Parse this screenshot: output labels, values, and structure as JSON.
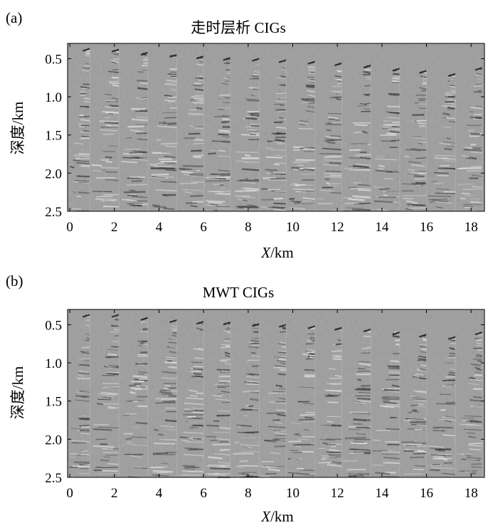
{
  "chart_data": [
    {
      "type": "heatmap",
      "panel_label": "(a)",
      "title": "走时层析 CIGs",
      "xlabel_var": "X",
      "xlabel_unit": "/km",
      "ylabel": "深度/km",
      "xlim": [
        -0.1,
        18.6
      ],
      "ylim": [
        0.3,
        2.5
      ],
      "y_inverted": true,
      "xticks": [
        0,
        2,
        4,
        6,
        8,
        10,
        12,
        14,
        16,
        18
      ],
      "yticks": [
        0.5,
        1.0,
        1.5,
        2.0,
        2.5
      ],
      "ytick_labels": [
        "0.5",
        "1.0",
        "1.5",
        "2.0",
        "2.5"
      ],
      "colormap": "gray",
      "background": "#9a9a9a",
      "gather_tops": [
        {
          "x": 0.9,
          "depth": 0.37
        },
        {
          "x": 2.2,
          "depth": 0.38
        },
        {
          "x": 3.5,
          "depth": 0.42
        },
        {
          "x": 4.8,
          "depth": 0.45
        },
        {
          "x": 6.0,
          "depth": 0.47
        },
        {
          "x": 7.2,
          "depth": 0.49
        },
        {
          "x": 8.5,
          "depth": 0.5
        },
        {
          "x": 9.7,
          "depth": 0.52
        },
        {
          "x": 11.0,
          "depth": 0.54
        },
        {
          "x": 12.2,
          "depth": 0.56
        },
        {
          "x": 13.5,
          "depth": 0.59
        },
        {
          "x": 14.8,
          "depth": 0.63
        },
        {
          "x": 16.0,
          "depth": 0.66
        },
        {
          "x": 17.3,
          "depth": 0.7
        },
        {
          "x": 18.5,
          "depth": 0.62
        }
      ]
    },
    {
      "type": "heatmap",
      "panel_label": "(b)",
      "title": "MWT CIGs",
      "xlabel_var": "X",
      "xlabel_unit": "/km",
      "ylabel": "深度/km",
      "xlim": [
        -0.1,
        18.6
      ],
      "ylim": [
        0.3,
        2.5
      ],
      "y_inverted": true,
      "xticks": [
        0,
        2,
        4,
        6,
        8,
        10,
        12,
        14,
        16,
        18
      ],
      "yticks": [
        0.5,
        1.0,
        1.5,
        2.0,
        2.5
      ],
      "ytick_labels": [
        "0.5",
        "1.0",
        "1.5",
        "2.0",
        "2.5"
      ],
      "colormap": "gray",
      "background": "#9a9a9a",
      "gather_tops": [
        {
          "x": 0.9,
          "depth": 0.37
        },
        {
          "x": 2.2,
          "depth": 0.37
        },
        {
          "x": 3.5,
          "depth": 0.41
        },
        {
          "x": 4.8,
          "depth": 0.44
        },
        {
          "x": 6.0,
          "depth": 0.46
        },
        {
          "x": 7.2,
          "depth": 0.47
        },
        {
          "x": 8.5,
          "depth": 0.49
        },
        {
          "x": 9.7,
          "depth": 0.5
        },
        {
          "x": 11.0,
          "depth": 0.52
        },
        {
          "x": 12.2,
          "depth": 0.54
        },
        {
          "x": 13.5,
          "depth": 0.56
        },
        {
          "x": 14.8,
          "depth": 0.6
        },
        {
          "x": 16.0,
          "depth": 0.63
        },
        {
          "x": 17.3,
          "depth": 0.66
        },
        {
          "x": 18.5,
          "depth": 0.6
        }
      ]
    }
  ]
}
